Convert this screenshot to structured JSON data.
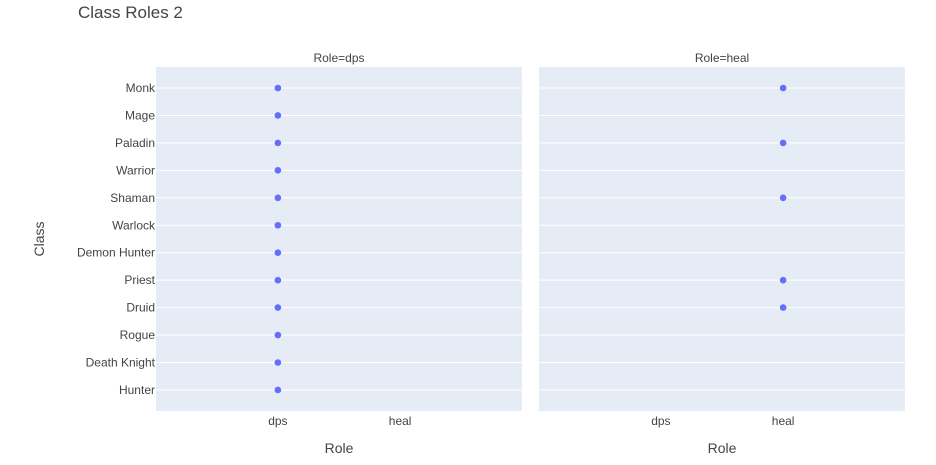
{
  "chart_data": {
    "type": "scatter",
    "title": "Class Roles 2",
    "xlabel": "Role",
    "ylabel": "Class",
    "x_categories": [
      "dps",
      "heal"
    ],
    "y_categories": [
      "Monk",
      "Mage",
      "Paladin",
      "Warrior",
      "Shaman",
      "Warlock",
      "Demon Hunter",
      "Priest",
      "Druid",
      "Rogue",
      "Death Knight",
      "Hunter"
    ],
    "facets": [
      {
        "label": "Role=dps",
        "points": [
          {
            "x": "dps",
            "y": "Monk"
          },
          {
            "x": "dps",
            "y": "Mage"
          },
          {
            "x": "dps",
            "y": "Paladin"
          },
          {
            "x": "dps",
            "y": "Warrior"
          },
          {
            "x": "dps",
            "y": "Shaman"
          },
          {
            "x": "dps",
            "y": "Warlock"
          },
          {
            "x": "dps",
            "y": "Demon Hunter"
          },
          {
            "x": "dps",
            "y": "Priest"
          },
          {
            "x": "dps",
            "y": "Druid"
          },
          {
            "x": "dps",
            "y": "Rogue"
          },
          {
            "x": "dps",
            "y": "Death Knight"
          },
          {
            "x": "dps",
            "y": "Hunter"
          }
        ]
      },
      {
        "label": "Role=heal",
        "points": [
          {
            "x": "heal",
            "y": "Monk"
          },
          {
            "x": "heal",
            "y": "Paladin"
          },
          {
            "x": "heal",
            "y": "Shaman"
          },
          {
            "x": "heal",
            "y": "Priest"
          },
          {
            "x": "heal",
            "y": "Druid"
          }
        ]
      }
    ],
    "grid": true,
    "colors": {
      "marker": "#636efa",
      "plot_bg": "#e5ecf6",
      "grid": "#ffffff",
      "text": "#444444",
      "title": "#444444"
    }
  }
}
